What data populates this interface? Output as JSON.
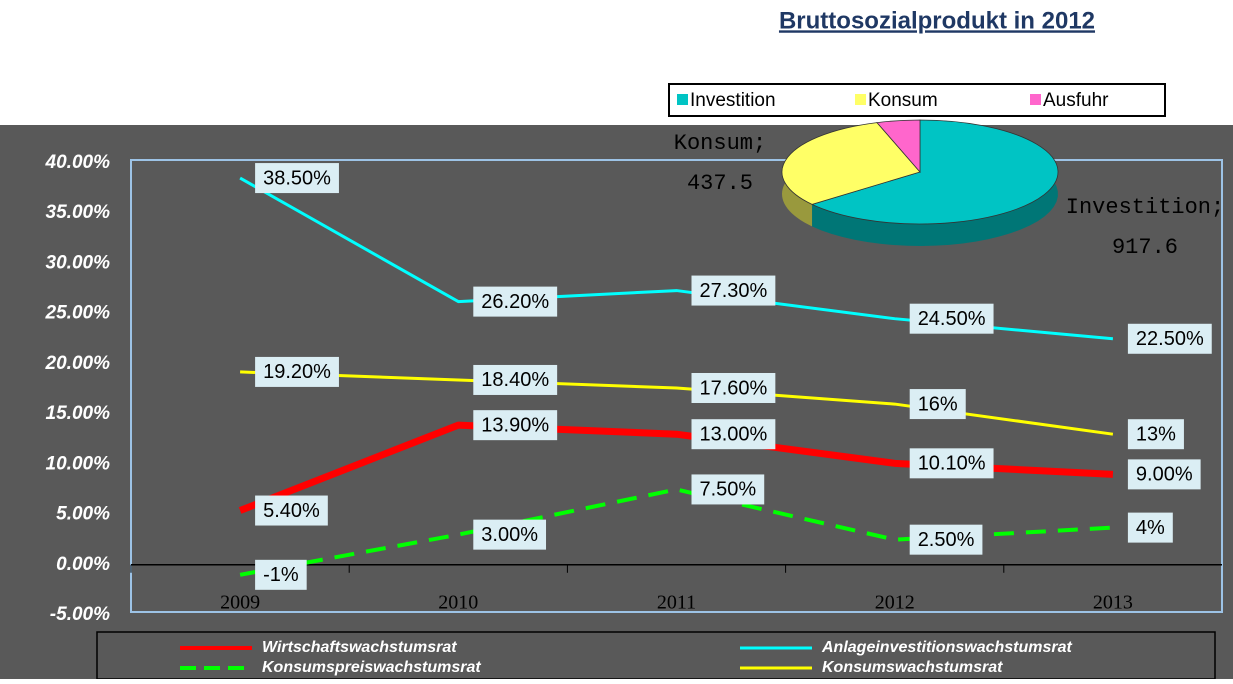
{
  "chart_data": [
    {
      "type": "line",
      "categories": [
        "2009",
        "2010",
        "2011",
        "2012",
        "2013"
      ],
      "ylim": [
        -5,
        40
      ],
      "yticks": [
        {
          "value": -5,
          "label": "-5.00%"
        },
        {
          "value": 0,
          "label": "0.00%"
        },
        {
          "value": 5,
          "label": "5.00%"
        },
        {
          "value": 10,
          "label": "10.00%"
        },
        {
          "value": 15,
          "label": "15.00%"
        },
        {
          "value": 20,
          "label": "20.00%"
        },
        {
          "value": 25,
          "label": "25.00%"
        },
        {
          "value": 30,
          "label": "30.00%"
        },
        {
          "value": 35,
          "label": "35.00%"
        },
        {
          "value": 40,
          "label": "40.00%"
        }
      ],
      "grid": false,
      "legend": "bottom",
      "series": [
        {
          "name": "Wirtschaftswachstumsrat",
          "color": "#ff0000",
          "linewidth": 7,
          "values": [
            5.4,
            13.9,
            13.0,
            10.1,
            9.0
          ],
          "value_labels": [
            "5.40%",
            "13.90%",
            "13.00%",
            "10.10%",
            "9.00%"
          ]
        },
        {
          "name": "Anlageinvestitionswachstumsrat",
          "color": "#00ffff",
          "linewidth": 3,
          "values": [
            38.5,
            26.2,
            27.3,
            24.5,
            22.5
          ],
          "value_labels": [
            "38.50%",
            "26.20%",
            "27.30%",
            "24.50%",
            "22.50%"
          ]
        },
        {
          "name": "Konsumspreiswachstumsrat",
          "color": "#00ff00",
          "linewidth": 4,
          "line_style": "dashed",
          "values": [
            -1,
            3.0,
            7.5,
            2.5,
            3.7
          ],
          "value_labels": [
            "-1%",
            "3.00%",
            "7.50%",
            "2.50%",
            "4%"
          ]
        },
        {
          "name": "Konsumswachstumsrat",
          "color": "#ffff00",
          "linewidth": 3,
          "values": [
            19.2,
            18.4,
            17.6,
            16,
            13
          ],
          "value_labels": [
            "19.20%",
            "18.40%",
            "17.60%",
            "16%",
            "13%"
          ]
        }
      ]
    },
    {
      "type": "pie",
      "title": "Bruttosozialprodukt in 2012",
      "legend": "top",
      "categories": [
        "Investition",
        "Konsum",
        "Ausfuhr"
      ],
      "values": [
        917.6,
        437.5,
        72
      ],
      "colors": [
        "#00c4c4",
        "#ffff66",
        "#ff66cc"
      ],
      "data_labels": [
        "Investition; 917.6",
        "Konsum; 437.5",
        null
      ]
    }
  ]
}
